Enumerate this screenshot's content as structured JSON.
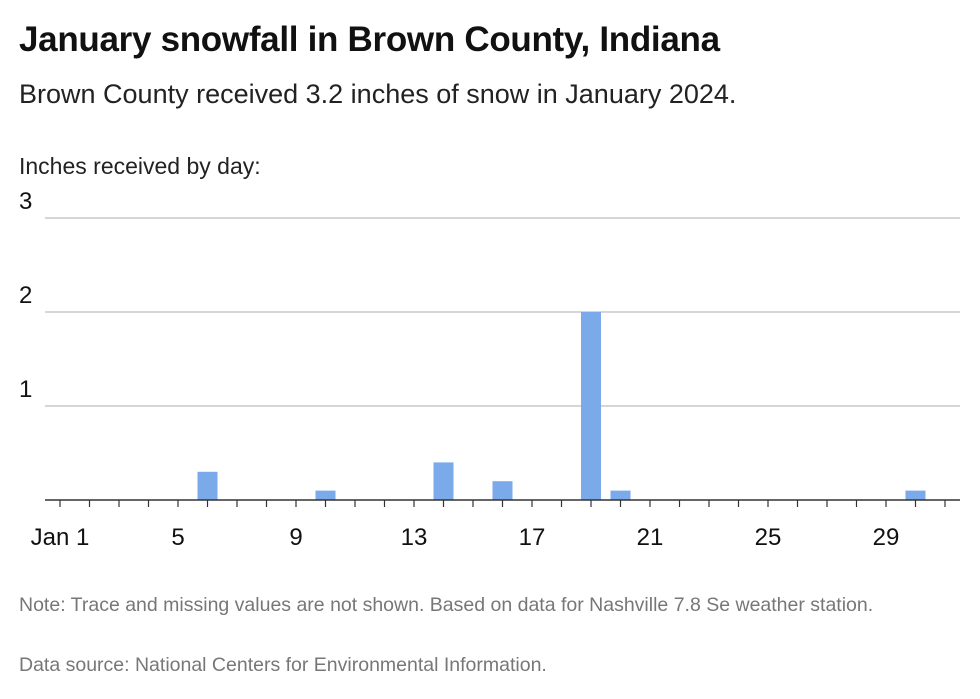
{
  "header": {
    "title": "January snowfall in Brown County, Indiana",
    "subtitle": "Brown County received 3.2 inches of snow in January 2024."
  },
  "footer": {
    "note": "Note: Trace and missing values are not shown. Based on data for Nashville 7.8 Se weather station.",
    "source": "Data source: National Centers for Environmental Information."
  },
  "colors": {
    "bar": "#7aaaea",
    "grid": "#c8c8c8",
    "axis": "#333333"
  },
  "chart_data": {
    "type": "bar",
    "title": "January snowfall in Brown County, Indiana",
    "subtitle": "Brown County received 3.2 inches of snow in January 2024.",
    "ylabel": "Inches received by day:",
    "xlabel": "",
    "x_tick_labels": [
      "Jan 1",
      "5",
      "9",
      "13",
      "17",
      "21",
      "25",
      "29"
    ],
    "x_tick_days": [
      1,
      5,
      9,
      13,
      17,
      21,
      25,
      29
    ],
    "y_ticks": [
      1,
      2,
      3
    ],
    "ylim": [
      0,
      3
    ],
    "xlim": [
      1,
      31
    ],
    "grid": true,
    "days": [
      6,
      10,
      14,
      16,
      19,
      20,
      30
    ],
    "values": [
      0.3,
      0.1,
      0.4,
      0.2,
      2.0,
      0.1,
      0.1
    ]
  }
}
